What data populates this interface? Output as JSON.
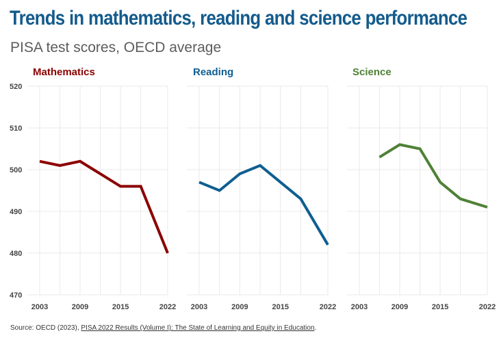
{
  "title": "Trends in mathematics, reading and science performance",
  "subtitle": "PISA test scores, OECD average",
  "source": {
    "prefix": "Source: OECD (2023), ",
    "link_text": "PISA 2022 Results (Volume I): The State of Learning and Equity in Education",
    "suffix": "."
  },
  "chart_data": [
    {
      "type": "line",
      "title": "Mathematics",
      "color": "#8b0000",
      "x": [
        2003,
        2006,
        2009,
        2012,
        2015,
        2018,
        2022
      ],
      "y": [
        502,
        501,
        502,
        499,
        496,
        496,
        480
      ],
      "xticks": [
        2003,
        2009,
        2015,
        2022
      ],
      "yticks": [
        470,
        480,
        490,
        500,
        510,
        520
      ],
      "xlim": [
        2003,
        2022
      ],
      "ylim": [
        470,
        520
      ],
      "xlabel": "",
      "ylabel": "",
      "grid": true
    },
    {
      "type": "line",
      "title": "Reading",
      "color": "#0f5e91",
      "x": [
        2003,
        2006,
        2009,
        2012,
        2015,
        2018,
        2022
      ],
      "y": [
        497,
        495,
        499,
        501,
        497,
        493,
        482
      ],
      "xticks": [
        2003,
        2009,
        2015,
        2022
      ],
      "xlim": [
        2003,
        2022
      ],
      "ylim": [
        470,
        520
      ],
      "xlabel": "",
      "ylabel": "",
      "grid": true
    },
    {
      "type": "line",
      "title": "Science",
      "color": "#4f8136",
      "x": [
        2006,
        2009,
        2012,
        2015,
        2018,
        2022
      ],
      "y": [
        503,
        506,
        505,
        497,
        493,
        491
      ],
      "xticks": [
        2003,
        2009,
        2015,
        2022
      ],
      "xlim": [
        2003,
        2022
      ],
      "ylim": [
        470,
        520
      ],
      "xlabel": "",
      "ylabel": "",
      "grid": true
    }
  ]
}
